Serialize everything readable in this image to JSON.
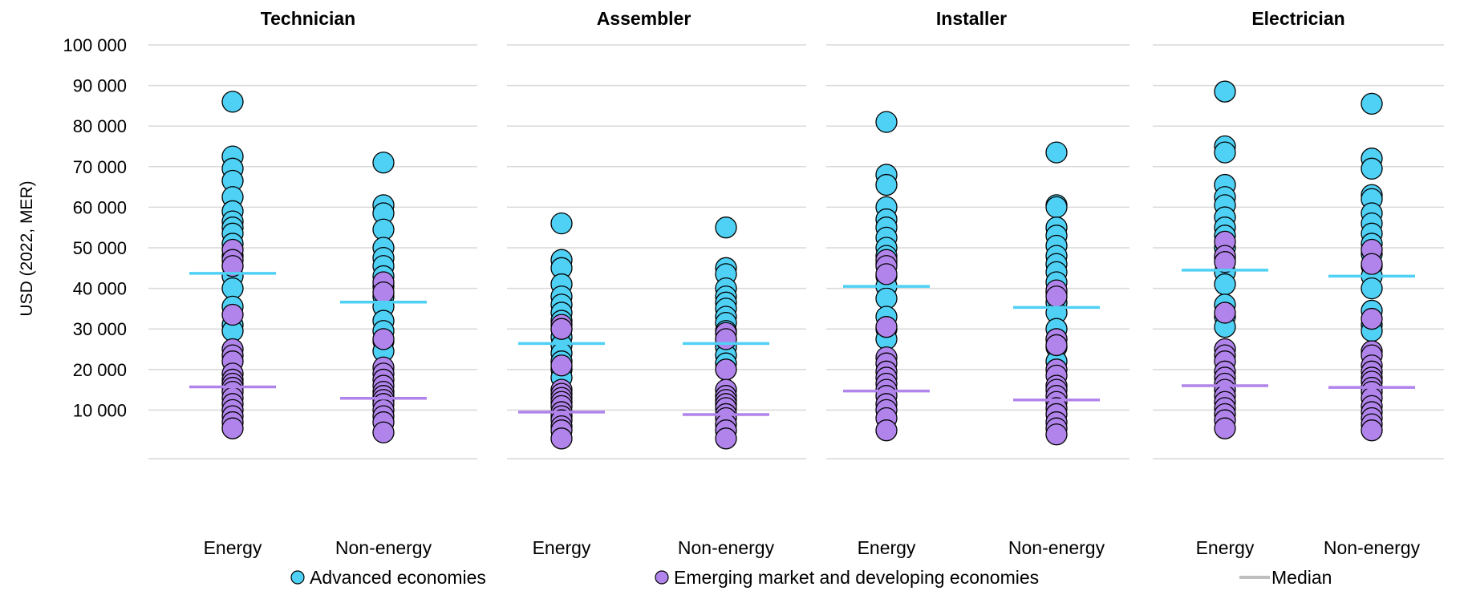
{
  "chart_data": {
    "type": "scatter",
    "ylabel": "USD (2022, MER)",
    "ylim": [
      0,
      100000
    ],
    "yticks": [
      10000,
      20000,
      30000,
      40000,
      50000,
      60000,
      70000,
      80000,
      90000,
      100000
    ],
    "ytick_labels": [
      "10 000",
      "20 000",
      "30 000",
      "40 000",
      "50 000",
      "60 000",
      "70 000",
      "80 000",
      "90 000",
      "100 000"
    ],
    "grid": true,
    "legend_position": "bottom",
    "colors": {
      "advanced": "#4fd0f5",
      "emerging": "#b084ea",
      "median": "#bfbfbf"
    },
    "legend": [
      {
        "key": "advanced",
        "label": "Advanced economies",
        "kind": "marker"
      },
      {
        "key": "emerging",
        "label": "Emerging market and developing economies",
        "kind": "marker"
      },
      {
        "key": "median",
        "label": "Median",
        "kind": "line"
      }
    ],
    "panels": [
      {
        "title": "Technician",
        "groups": [
          {
            "category": "Energy",
            "advanced": [
              86000,
              72500,
              69500,
              66500,
              62500,
              59000,
              56500,
              55000,
              53500,
              51000,
              48000,
              45500,
              43000,
              40000,
              35500,
              31000,
              29500
            ],
            "advanced_median": 43700,
            "emerging": [
              49500,
              47000,
              45500,
              33500,
              25000,
              23500,
              22000,
              19000,
              17500,
              16500,
              15500,
              14500,
              13000,
              11500,
              10000,
              8500,
              7000,
              5500
            ],
            "emerging_median": 15700
          },
          {
            "category": "Non-energy",
            "advanced": [
              71000,
              60500,
              58500,
              54500,
              50000,
              47500,
              45500,
              43000,
              40500,
              38000,
              35500,
              32000,
              29500,
              27000,
              24500
            ],
            "advanced_median": 36600,
            "emerging": [
              41500,
              39000,
              27500,
              20500,
              19000,
              17500,
              16000,
              14500,
              13500,
              12500,
              11500,
              10000,
              8500,
              7000,
              4500
            ],
            "emerging_median": 12900
          }
        ]
      },
      {
        "title": "Assembler",
        "groups": [
          {
            "category": "Energy",
            "advanced": [
              56000,
              47000,
              45000,
              41000,
              38000,
              36000,
              34000,
              32000,
              30000,
              28000,
              26000,
              24000,
              22000,
              20000,
              18000
            ],
            "advanced_median": 26400,
            "emerging": [
              31000,
              30000,
              21000,
              15000,
              14000,
              13000,
              12000,
              11000,
              9500,
              8500,
              7500,
              6000,
              5000,
              3000
            ],
            "emerging_median": 9500
          },
          {
            "category": "Non-energy",
            "advanced": [
              55000,
              45000,
              43500,
              40000,
              38000,
              36500,
              35000,
              33000,
              31500,
              29500,
              27500,
              25500,
              23500,
              21500
            ],
            "advanced_median": 26400,
            "emerging": [
              29000,
              27500,
              20000,
              15000,
              13500,
              12500,
              11500,
              10500,
              9000,
              8000,
              6500,
              5000,
              3000
            ],
            "emerging_median": 8900
          }
        ]
      },
      {
        "title": "Installer",
        "groups": [
          {
            "category": "Energy",
            "advanced": [
              81000,
              68000,
              65500,
              60000,
              57000,
              55000,
              52500,
              50000,
              48000,
              46000,
              43000,
              40500,
              37500,
              33000,
              30000,
              27500
            ],
            "advanced_median": 40500,
            "emerging": [
              47000,
              45500,
              43500,
              30500,
              23000,
              21500,
              19500,
              18000,
              16500,
              15000,
              13500,
              11500,
              10000,
              8000,
              5000
            ],
            "emerging_median": 14700
          },
          {
            "category": "Non-energy",
            "advanced": [
              73500,
              60500,
              60000,
              55000,
              53000,
              50500,
              48000,
              46000,
              44000,
              41500,
              39000,
              36500,
              34000,
              30000,
              27500,
              25500,
              22000
            ],
            "advanced_median": 35300,
            "emerging": [
              39500,
              38000,
              27500,
              26000,
              20000,
              18500,
              16000,
              15000,
              13500,
              12000,
              10500,
              9000,
              7000,
              5500,
              4000
            ],
            "emerging_median": 12500
          }
        ]
      },
      {
        "title": "Electrician",
        "groups": [
          {
            "category": "Energy",
            "advanced": [
              88500,
              75000,
              73500,
              65500,
              62500,
              60500,
              57500,
              55000,
              53000,
              50000,
              47500,
              44000,
              41000,
              36000,
              33000,
              30500
            ],
            "advanced_median": 44500,
            "emerging": [
              51500,
              48000,
              46500,
              34000,
              25000,
              23500,
              22000,
              19500,
              18000,
              16500,
              15000,
              13500,
              12000,
              10500,
              9000,
              7500,
              5500
            ],
            "emerging_median": 16000
          },
          {
            "category": "Non-energy",
            "advanced": [
              85500,
              72000,
              69500,
              63000,
              62000,
              58500,
              56000,
              53500,
              51000,
              48500,
              45500,
              43000,
              40000,
              34500,
              31000,
              29500
            ],
            "advanced_median": 43000,
            "emerging": [
              49500,
              46000,
              32500,
              24500,
              23500,
              21000,
              19500,
              18000,
              17000,
              15500,
              14500,
              13000,
              11000,
              9500,
              8000,
              6500,
              5000
            ],
            "emerging_median": 15600
          }
        ]
      }
    ]
  }
}
